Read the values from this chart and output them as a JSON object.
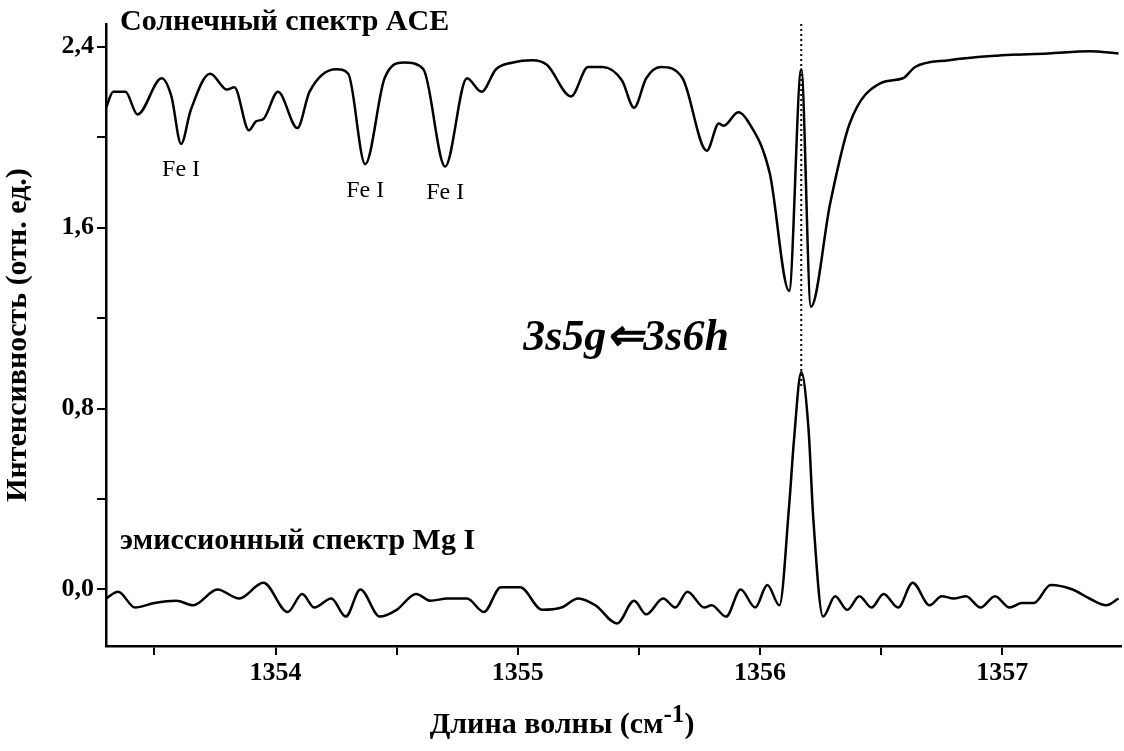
{
  "chart_data": {
    "type": "line",
    "xlabel": "Длина волны (см$^{-1}$)",
    "ylabel": "Интенсивность (отн. ед.)",
    "xlim": [
      1353.3,
      1357.49
    ],
    "ylim": [
      -0.25,
      2.5
    ],
    "xticks": [
      {
        "value": 1353.5,
        "label": null
      },
      1354,
      {
        "value": 1354.5,
        "label": null
      },
      1355,
      {
        "value": 1355.5,
        "label": null
      },
      1356,
      {
        "value": 1356.5,
        "label": null
      },
      1357
    ],
    "yticks": [
      {
        "value": 0,
        "label": "0,0"
      },
      {
        "value": 0.4,
        "label": null
      },
      {
        "value": 0.8,
        "label": "0,8"
      },
      {
        "value": 1.2,
        "label": null
      },
      {
        "value": 1.6,
        "label": "1,6"
      },
      {
        "value": 2.0,
        "label": null
      },
      {
        "value": 2.4,
        "label": "2,4"
      }
    ],
    "grid": false,
    "legend": false,
    "marker": "none",
    "line_style": "solid",
    "series": [
      {
        "name": "Солнечный спектр ACE",
        "color": "#000000",
        "x": [
          1353.3,
          1353.33,
          1353.38,
          1353.43,
          1353.53,
          1353.57,
          1353.61,
          1353.65,
          1353.73,
          1353.8,
          1353.83,
          1353.89,
          1353.92,
          1353.95,
          1354.01,
          1354.09,
          1354.14,
          1354.25,
          1354.3,
          1354.37,
          1354.45,
          1354.53,
          1354.61,
          1354.7,
          1354.79,
          1354.85,
          1354.91,
          1354.98,
          1355.06,
          1355.12,
          1355.22,
          1355.29,
          1355.35,
          1355.43,
          1355.48,
          1355.53,
          1355.59,
          1355.68,
          1355.78,
          1355.83,
          1355.85,
          1355.91,
          1355.95,
          1356.04,
          1356.12,
          1356.17,
          1356.21,
          1356.29,
          1356.37,
          1356.5,
          1356.59,
          1356.64,
          1356.78,
          1356.98,
          1357.19,
          1357.36,
          1357.48
        ],
        "values": [
          2.13,
          2.2,
          2.2,
          2.1,
          2.26,
          2.18,
          1.97,
          2.12,
          2.28,
          2.21,
          2.22,
          2.03,
          2.07,
          2.08,
          2.2,
          2.04,
          2.2,
          2.3,
          2.28,
          1.88,
          2.26,
          2.33,
          2.3,
          1.87,
          2.26,
          2.2,
          2.3,
          2.33,
          2.34,
          2.32,
          2.18,
          2.31,
          2.31,
          2.25,
          2.13,
          2.26,
          2.31,
          2.26,
          1.94,
          2.06,
          2.05,
          2.11,
          2.07,
          1.84,
          1.32,
          2.3,
          1.25,
          1.71,
          2.06,
          2.24,
          2.26,
          2.31,
          2.34,
          2.36,
          2.37,
          2.38,
          2.37
        ]
      },
      {
        "name": "эмиссионный спектр Mg I",
        "color": "#000000",
        "x": [
          1353.3,
          1353.35,
          1353.42,
          1353.5,
          1353.59,
          1353.66,
          1353.76,
          1353.85,
          1353.95,
          1354.05,
          1354.11,
          1354.16,
          1354.23,
          1354.29,
          1354.35,
          1354.43,
          1354.5,
          1354.58,
          1354.64,
          1354.71,
          1354.79,
          1354.86,
          1354.93,
          1355.01,
          1355.1,
          1355.18,
          1355.25,
          1355.32,
          1355.41,
          1355.48,
          1355.53,
          1355.6,
          1355.65,
          1355.7,
          1355.77,
          1355.8,
          1355.86,
          1355.92,
          1355.98,
          1356.03,
          1356.08,
          1356.12,
          1356.14,
          1356.17,
          1356.2,
          1356.22,
          1356.26,
          1356.31,
          1356.36,
          1356.41,
          1356.46,
          1356.51,
          1356.57,
          1356.63,
          1356.7,
          1356.75,
          1356.8,
          1356.85,
          1356.91,
          1356.97,
          1357.03,
          1357.08,
          1357.13,
          1357.2,
          1357.29,
          1357.36,
          1357.43,
          1357.48
        ],
        "values": [
          -0.04,
          -0.01,
          -0.08,
          -0.06,
          -0.05,
          -0.07,
          0,
          -0.04,
          0.03,
          -0.1,
          -0.02,
          -0.08,
          -0.04,
          -0.12,
          0,
          -0.12,
          -0.09,
          -0.02,
          -0.05,
          -0.04,
          -0.04,
          -0.1,
          0.01,
          0.01,
          -0.09,
          -0.08,
          -0.04,
          -0.07,
          -0.15,
          -0.05,
          -0.11,
          -0.04,
          -0.08,
          -0.01,
          -0.08,
          -0.07,
          -0.12,
          0,
          -0.08,
          0.02,
          -0.07,
          0.37,
          0.66,
          0.96,
          0.71,
          0.31,
          -0.12,
          -0.03,
          -0.09,
          -0.03,
          -0.08,
          -0.02,
          -0.08,
          0.03,
          -0.07,
          -0.03,
          -0.04,
          -0.03,
          -0.08,
          -0.03,
          -0.08,
          -0.06,
          -0.06,
          0.02,
          0,
          -0.04,
          -0.07,
          -0.04
        ]
      }
    ],
    "ref_lines": [
      {
        "axis": "x",
        "value": 1356.17,
        "line_style": "dotted",
        "color": "#000000"
      }
    ],
    "annotations": [
      {
        "text": "Fe I",
        "x": 1353.61,
        "y": 1.97
      },
      {
        "text": "Fe I",
        "x": 1354.37,
        "y": 1.88
      },
      {
        "text": "Fe I",
        "x": 1354.7,
        "y": 1.87
      },
      "3s5g⇐3s6h"
    ]
  }
}
